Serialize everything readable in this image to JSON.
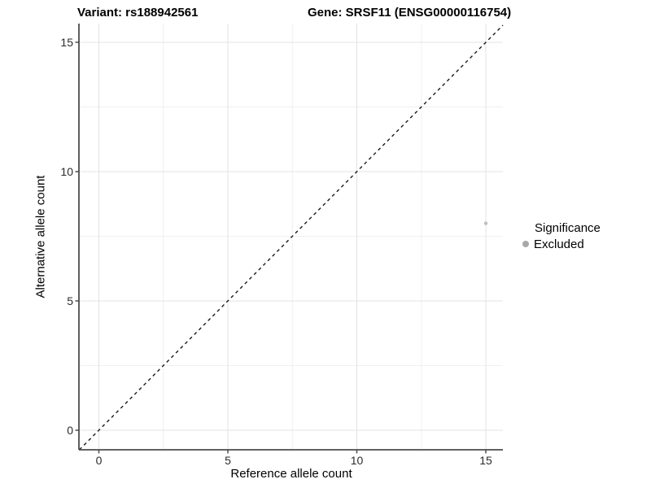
{
  "title": {
    "variant": "Variant: rs188942561",
    "gene": "Gene: SRSF11 (ENSG00000116754)"
  },
  "axes": {
    "x": {
      "label": "Reference allele count",
      "ticks": [
        "0",
        "5",
        "10",
        "15"
      ]
    },
    "y": {
      "label": "Alternative allele count",
      "ticks": [
        "0",
        "5",
        "10",
        "15"
      ]
    }
  },
  "legend": {
    "title": "Significance",
    "items": [
      {
        "label": "Excluded",
        "color": "#a8a8a8"
      }
    ]
  },
  "colors": {
    "background": "#ffffff",
    "grid_major": "#e3e3e3",
    "grid_minor": "#f0f0f0",
    "axis_line": "#4d4d4d",
    "tick_label": "#2b2b2b",
    "identity_line": "#1a1a1a",
    "point": "#bfbfbf"
  },
  "chart_data": {
    "type": "scatter",
    "title": "Variant: rs188942561   Gene: SRSF11 (ENSG00000116754)",
    "xlabel": "Reference allele count",
    "ylabel": "Alternative allele count",
    "xlim": [
      -0.76,
      15.73
    ],
    "ylim": [
      -0.76,
      15.73
    ],
    "x_ticks": [
      0,
      5,
      10,
      15
    ],
    "y_ticks": [
      0,
      5,
      10,
      15
    ],
    "minor_ticks_x": [
      2.5,
      7.5,
      12.5
    ],
    "minor_ticks_y": [
      2.5,
      7.5,
      12.5
    ],
    "grid": "major and minor, light gray, white background",
    "legend_position": "right",
    "series": [
      {
        "name": "Excluded",
        "color": "#bfbfbf",
        "marker": "circle",
        "points": [
          {
            "x": 15,
            "y": 8
          }
        ]
      }
    ],
    "reference_line": {
      "kind": "identity y = x",
      "style": "dashed",
      "color": "#1a1a1a"
    }
  }
}
